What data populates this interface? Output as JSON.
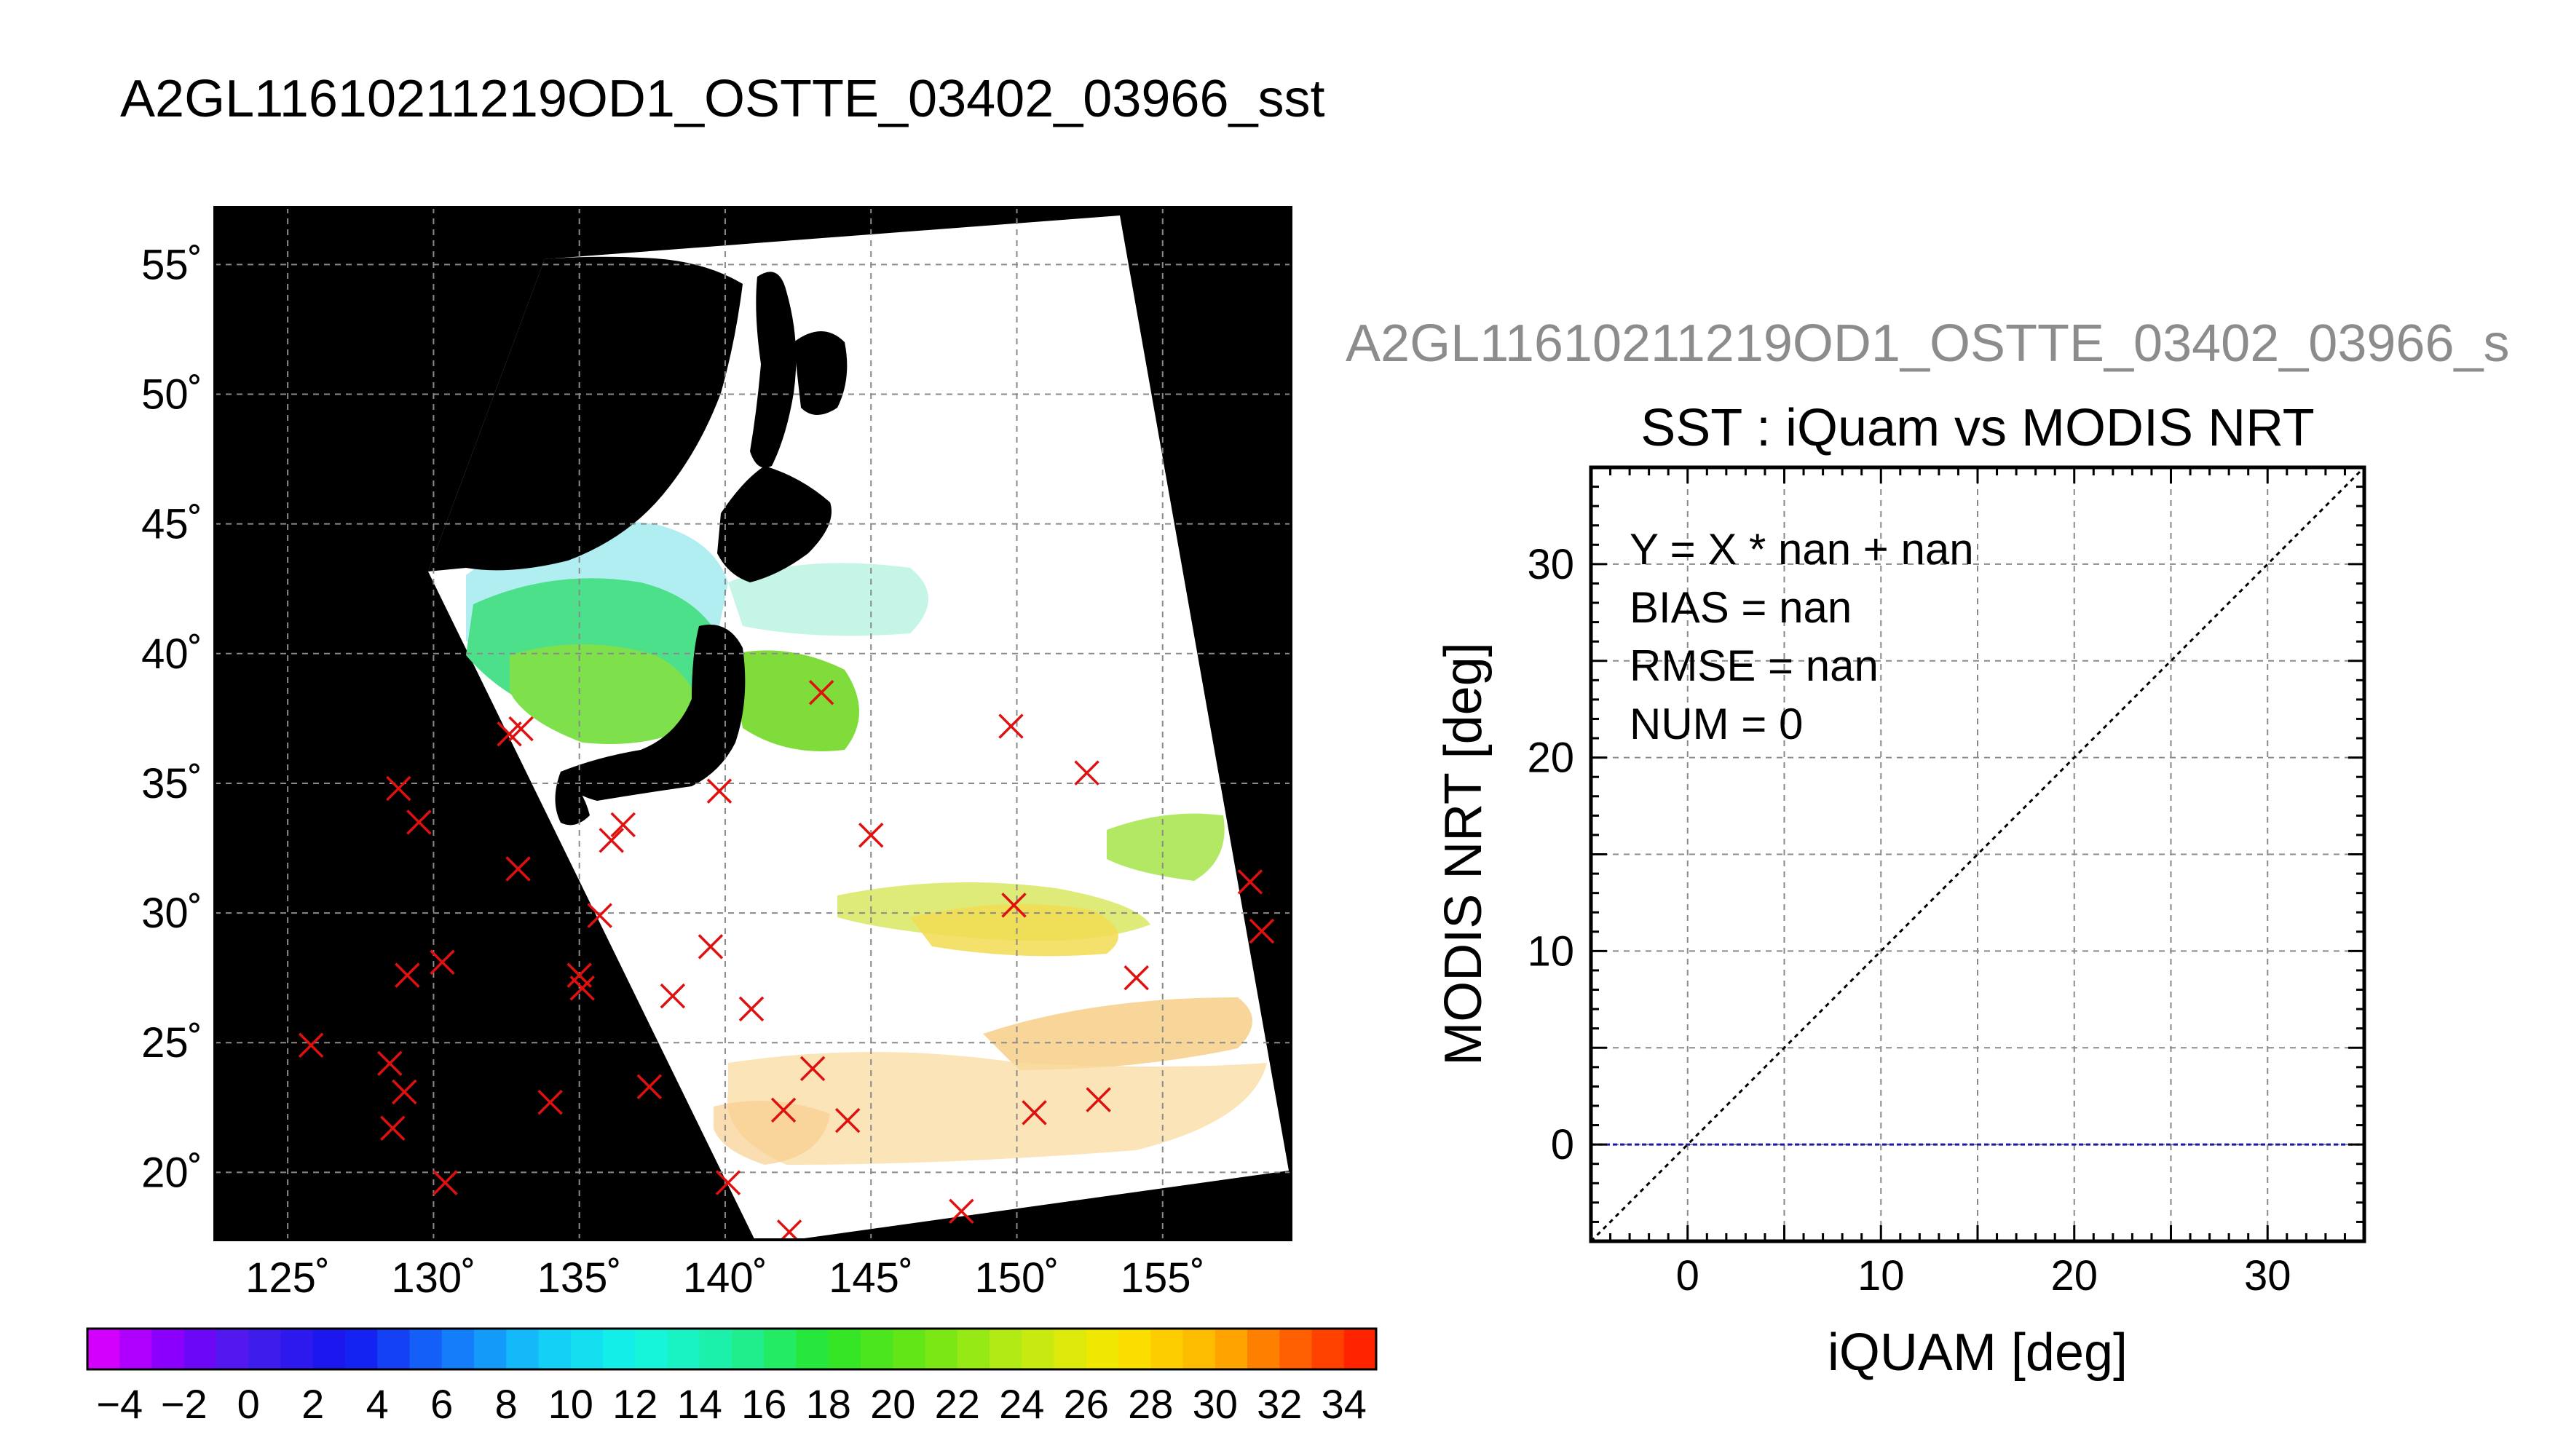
{
  "page": {
    "title": "A2GL11610211219OD1_OSTTE_03402_03966_sst"
  },
  "chart_data": [
    {
      "type": "map",
      "name": "sst-map",
      "lon_ticks": [
        "125˚",
        "130˚",
        "135˚",
        "140˚",
        "145˚",
        "150˚",
        "155˚"
      ],
      "lat_ticks": [
        "55˚",
        "50˚",
        "45˚",
        "40˚",
        "35˚",
        "30˚",
        "25˚",
        "20˚"
      ],
      "lon_values": [
        125,
        130,
        135,
        140,
        145,
        150,
        155
      ],
      "lat_values": [
        55,
        50,
        45,
        40,
        35,
        30,
        25,
        20
      ],
      "xlim": [
        122.5,
        159.4
      ],
      "ylim": [
        17.4,
        57.2
      ],
      "grid": true,
      "markers": [
        [
          125.8,
          24.9
        ],
        [
          128.8,
          34.8
        ],
        [
          129.5,
          33.5
        ],
        [
          128.5,
          24.2
        ],
        [
          129.0,
          23.1
        ],
        [
          128.6,
          21.7
        ],
        [
          129.1,
          27.6
        ],
        [
          130.3,
          28.1
        ],
        [
          130.4,
          19.6
        ],
        [
          132.6,
          36.9
        ],
        [
          133.0,
          37.1
        ],
        [
          132.9,
          31.7
        ],
        [
          134.0,
          22.7
        ],
        [
          135.0,
          27.6
        ],
        [
          135.1,
          27.1
        ],
        [
          135.7,
          29.9
        ],
        [
          136.1,
          32.8
        ],
        [
          136.5,
          33.4
        ],
        [
          137.4,
          23.3
        ],
        [
          138.2,
          26.8
        ],
        [
          139.5,
          28.7
        ],
        [
          139.8,
          34.7
        ],
        [
          140.1,
          19.6
        ],
        [
          140.9,
          26.3
        ],
        [
          142.0,
          22.4
        ],
        [
          142.2,
          17.7
        ],
        [
          143.0,
          24.0
        ],
        [
          143.3,
          38.5
        ],
        [
          144.2,
          22.0
        ],
        [
          145.0,
          33.0
        ],
        [
          148.1,
          18.5
        ],
        [
          149.8,
          37.2
        ],
        [
          149.9,
          30.3
        ],
        [
          150.6,
          22.3
        ],
        [
          152.4,
          35.4
        ],
        [
          152.8,
          22.8
        ],
        [
          154.1,
          27.5
        ],
        [
          158.0,
          31.2
        ],
        [
          158.4,
          29.3
        ]
      ]
    },
    {
      "type": "colorbar",
      "name": "sst-colorbar",
      "min": -5,
      "max": 35,
      "step": 1,
      "tick_labels": [
        "−4",
        "−2",
        "0",
        "2",
        "4",
        "6",
        "8",
        "10",
        "12",
        "14",
        "16",
        "18",
        "20",
        "22",
        "24",
        "26",
        "28",
        "30",
        "32",
        "34"
      ],
      "tick_values": [
        -4,
        -2,
        0,
        2,
        4,
        6,
        8,
        10,
        12,
        14,
        16,
        18,
        20,
        22,
        24,
        26,
        28,
        30,
        32,
        34
      ]
    },
    {
      "type": "scatter",
      "name": "iquam-vs-modis-scatter",
      "suptitle": "A2GL11610211219OD1_OSTTE_03402_03966_s",
      "title": "SST : iQuam vs MODIS NRT",
      "xlabel": "iQUAM [deg]",
      "ylabel": "MODIS NRT [deg]",
      "xlim": [
        -5,
        35
      ],
      "ylim": [
        -5,
        35
      ],
      "x_ticks": [
        0,
        10,
        20,
        30
      ],
      "y_ticks": [
        0,
        10,
        20,
        30
      ],
      "x_tick_labels": [
        "0",
        "10",
        "20",
        "30"
      ],
      "y_tick_labels": [
        "0",
        "10",
        "20",
        "30"
      ],
      "grid": true,
      "points": [],
      "one_to_one_line": [
        [
          -5,
          -5
        ],
        [
          35,
          35
        ]
      ],
      "zero_line_y": 0,
      "colors": {
        "one_to_one": "#000000",
        "zero_line": "#1a1aa8",
        "marker": "#e01010"
      },
      "stats": {
        "equation": "Y = X * nan + nan",
        "bias": "BIAS = nan",
        "rmse": "RMSE = nan",
        "num": "NUM = 0"
      }
    }
  ]
}
